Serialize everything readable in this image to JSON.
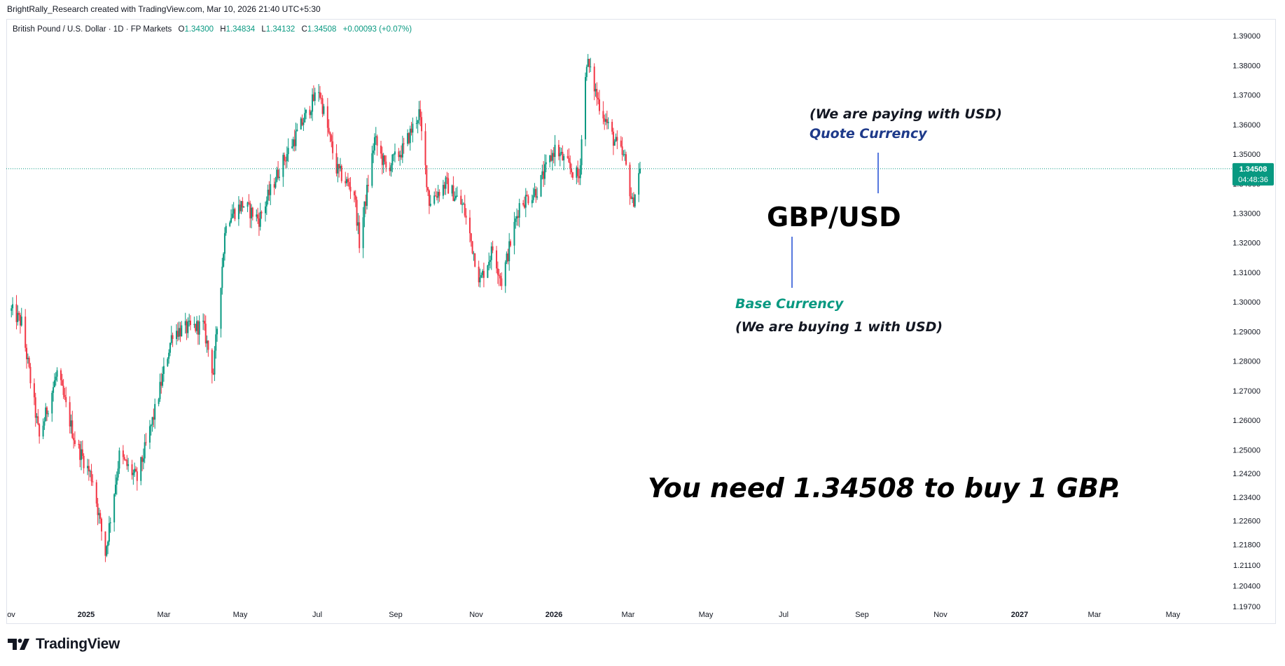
{
  "header": {
    "attribution": "BrightRally_Research created with TradingView.com, Mar 10, 2026 21:40 UTC+5:30"
  },
  "legend": {
    "symbol": "British Pound / U.S. Dollar · 1D · FP Markets",
    "open_label": "O",
    "open": "1.34300",
    "high_label": "H",
    "high": "1.34834",
    "low_label": "L",
    "low": "1.34132",
    "close_label": "C",
    "close": "1.34508",
    "change": "+0.00093 (+0.07%)"
  },
  "price_badge": {
    "price": "1.34508",
    "countdown": "04:48:36"
  },
  "annotations": {
    "quote_note": "(We are paying with USD)",
    "quote_label": "Quote Currency",
    "pair": "GBP/USD",
    "base_label": "Base Currency",
    "base_note": "(We are buying 1 with USD)",
    "statement": "You need 1.34508 to buy 1 GBP."
  },
  "branding": {
    "logo_text": "TradingView"
  },
  "colors": {
    "up": "#089981",
    "down": "#f23645",
    "quote_label": "#1e3a8a",
    "base_label": "#089981",
    "badge_bg": "#089981",
    "text": "#131722"
  },
  "chart_data": {
    "type": "candlestick",
    "instrument": "British Pound / U.S. Dollar",
    "interval": "1D",
    "y_axis": {
      "ticks": [
        "1.39000",
        "1.38000",
        "1.37000",
        "1.36000",
        "1.35000",
        "1.34000",
        "1.33000",
        "1.32000",
        "1.31000",
        "1.30000",
        "1.29000",
        "1.28000",
        "1.27000",
        "1.26000",
        "1.25000",
        "1.24200",
        "1.23400",
        "1.22600",
        "1.21800",
        "1.21100",
        "1.20400",
        "1.19700"
      ],
      "ylim": [
        1.197,
        1.391
      ]
    },
    "x_axis": {
      "ticks": [
        "ov",
        "2025",
        "Mar",
        "May",
        "Jul",
        "Sep",
        "Nov",
        "2026",
        "Mar",
        "May",
        "Jul",
        "Sep",
        "Nov",
        "2027",
        "Mar",
        "May"
      ],
      "bold_ticks": [
        "2025",
        "2026",
        "2027"
      ]
    },
    "last_price": 1.34508,
    "price_path": [
      [
        "2024-10-31",
        1.297
      ],
      [
        "2024-11-08",
        1.293
      ],
      [
        "2024-11-22",
        1.254
      ],
      [
        "2024-12-06",
        1.276
      ],
      [
        "2024-12-20",
        1.253
      ],
      [
        "2025-01-03",
        1.24
      ],
      [
        "2025-01-13",
        1.215
      ],
      [
        "2025-01-24",
        1.248
      ],
      [
        "2025-02-07",
        1.24
      ],
      [
        "2025-02-21",
        1.263
      ],
      [
        "2025-03-07",
        1.29
      ],
      [
        "2025-03-31",
        1.292
      ],
      [
        "2025-04-08",
        1.276
      ],
      [
        "2025-04-18",
        1.328
      ],
      [
        "2025-05-01",
        1.333
      ],
      [
        "2025-05-14",
        1.328
      ],
      [
        "2025-05-30",
        1.345
      ],
      [
        "2025-06-13",
        1.357
      ],
      [
        "2025-06-30",
        1.372
      ],
      [
        "2025-07-14",
        1.345
      ],
      [
        "2025-07-28",
        1.337
      ],
      [
        "2025-08-01",
        1.32
      ],
      [
        "2025-08-13",
        1.355
      ],
      [
        "2025-08-22",
        1.345
      ],
      [
        "2025-09-05",
        1.352
      ],
      [
        "2025-09-17",
        1.364
      ],
      [
        "2025-09-25",
        1.334
      ],
      [
        "2025-10-08",
        1.34
      ],
      [
        "2025-10-22",
        1.332
      ],
      [
        "2025-11-04",
        1.307
      ],
      [
        "2025-11-14",
        1.318
      ],
      [
        "2025-11-21",
        1.307
      ],
      [
        "2025-12-05",
        1.333
      ],
      [
        "2025-12-19",
        1.338
      ],
      [
        "2026-01-02",
        1.352
      ],
      [
        "2026-01-14",
        1.345
      ],
      [
        "2026-01-21",
        1.342
      ],
      [
        "2026-01-27",
        1.382
      ],
      [
        "2026-02-05",
        1.368
      ],
      [
        "2026-02-17",
        1.355
      ],
      [
        "2026-02-26",
        1.348
      ],
      [
        "2026-03-04",
        1.333
      ],
      [
        "2026-03-10",
        1.34508
      ]
    ]
  }
}
